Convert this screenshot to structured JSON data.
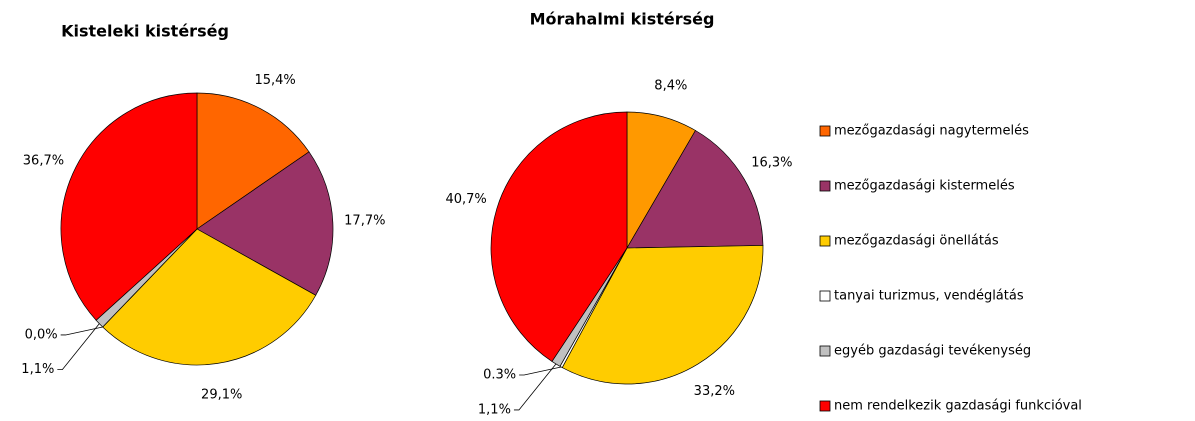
{
  "legend": {
    "labels": [
      "mezőgazdasági nagytermelés",
      "mezőgazdasági kistermelés",
      "mezőgazdasági önellátás",
      "tanyai turizmus, vendéglátás",
      "egyéb gazdasági tevékenység",
      "nem rendelkezik gazdasági funkcióval"
    ],
    "colors": [
      "#ff6600",
      "#993366",
      "#ffcc00",
      "#ffffff",
      "#c0c0c0",
      "#ff0000"
    ]
  },
  "chart_data": [
    {
      "type": "pie",
      "title": "Kisteleki kistérség",
      "values": [
        15.4,
        17.7,
        29.1,
        0.0,
        1.1,
        36.7
      ],
      "value_labels": [
        "15,4%",
        "17,7%",
        "29,1%",
        "0,0%",
        "1,1%",
        "36,7%"
      ],
      "colors": [
        "#ff6600",
        "#993366",
        "#ffcc00",
        "#ffffff",
        "#c0c0c0",
        "#ff0000"
      ]
    },
    {
      "type": "pie",
      "title": "Mórahalmi kistérség",
      "values": [
        8.4,
        16.3,
        33.2,
        0.3,
        1.1,
        40.7
      ],
      "value_labels": [
        "8,4%",
        "16,3%",
        "33,2%",
        "0.3%",
        "1,1%",
        "40,7%"
      ],
      "colors": [
        "#ff9900",
        "#993366",
        "#ffcc00",
        "#ffffff",
        "#c0c0c0",
        "#ff0000"
      ]
    }
  ]
}
